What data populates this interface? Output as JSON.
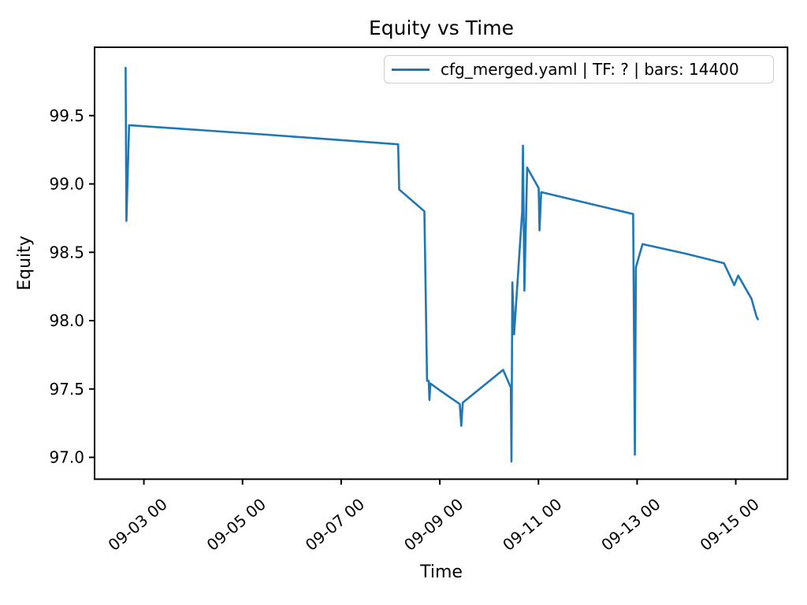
{
  "chart_data": {
    "type": "line",
    "title": "Equity vs Time",
    "xlabel": "Time",
    "ylabel": "Equity",
    "legend": {
      "position": "upper right",
      "entries": [
        {
          "label": "cfg_merged.yaml | TF: ? | bars: 14400",
          "color": "#1f77b4"
        }
      ]
    },
    "grid": false,
    "line_color": "#1f77b4",
    "axis_color": "#000000",
    "x_unit": "days, 0 = 09-02 00:00",
    "xlim": [
      0,
      14.05
    ],
    "ylim": [
      96.84,
      100.0
    ],
    "xticks": [
      {
        "pos": 1,
        "label": "09-03 00"
      },
      {
        "pos": 3,
        "label": "09-05 00"
      },
      {
        "pos": 5,
        "label": "09-07 00"
      },
      {
        "pos": 7,
        "label": "09-09 00"
      },
      {
        "pos": 9,
        "label": "09-11 00"
      },
      {
        "pos": 11,
        "label": "09-13 00"
      },
      {
        "pos": 13,
        "label": "09-15 00"
      }
    ],
    "yticks": [
      {
        "pos": 97.0,
        "label": "97.0"
      },
      {
        "pos": 97.5,
        "label": "97.5"
      },
      {
        "pos": 98.0,
        "label": "98.0"
      },
      {
        "pos": 98.5,
        "label": "98.5"
      },
      {
        "pos": 99.0,
        "label": "99.0"
      },
      {
        "pos": 99.5,
        "label": "99.5"
      }
    ],
    "series": [
      {
        "name": "cfg_merged.yaml | TF: ? | bars: 14400",
        "points": [
          [
            0.63,
            99.85
          ],
          [
            0.645,
            98.73
          ],
          [
            0.7,
            99.43
          ],
          [
            3.5,
            99.36
          ],
          [
            6.155,
            99.29
          ],
          [
            6.175,
            98.96
          ],
          [
            6.687,
            98.8
          ],
          [
            6.741,
            97.56
          ],
          [
            6.775,
            97.56
          ],
          [
            6.79,
            97.42
          ],
          [
            6.81,
            97.54
          ],
          [
            7.0,
            97.49
          ],
          [
            7.405,
            97.39
          ],
          [
            7.435,
            97.23
          ],
          [
            7.465,
            97.4
          ],
          [
            8.284,
            97.64
          ],
          [
            8.44,
            97.51
          ],
          [
            8.452,
            96.97
          ],
          [
            8.47,
            98.28
          ],
          [
            8.505,
            97.9
          ],
          [
            8.67,
            98.8
          ],
          [
            8.686,
            99.28
          ],
          [
            8.715,
            98.22
          ],
          [
            8.77,
            99.12
          ],
          [
            9.004,
            98.97
          ],
          [
            9.022,
            98.66
          ],
          [
            9.055,
            98.94
          ],
          [
            10.92,
            98.78
          ],
          [
            10.955,
            97.02
          ],
          [
            10.975,
            98.39
          ],
          [
            11.11,
            98.56
          ],
          [
            11.985,
            98.49
          ],
          [
            12.76,
            98.42
          ],
          [
            12.97,
            98.26
          ],
          [
            13.05,
            98.33
          ],
          [
            13.32,
            98.16
          ],
          [
            13.42,
            98.03
          ],
          [
            13.45,
            98.01
          ]
        ]
      }
    ]
  }
}
